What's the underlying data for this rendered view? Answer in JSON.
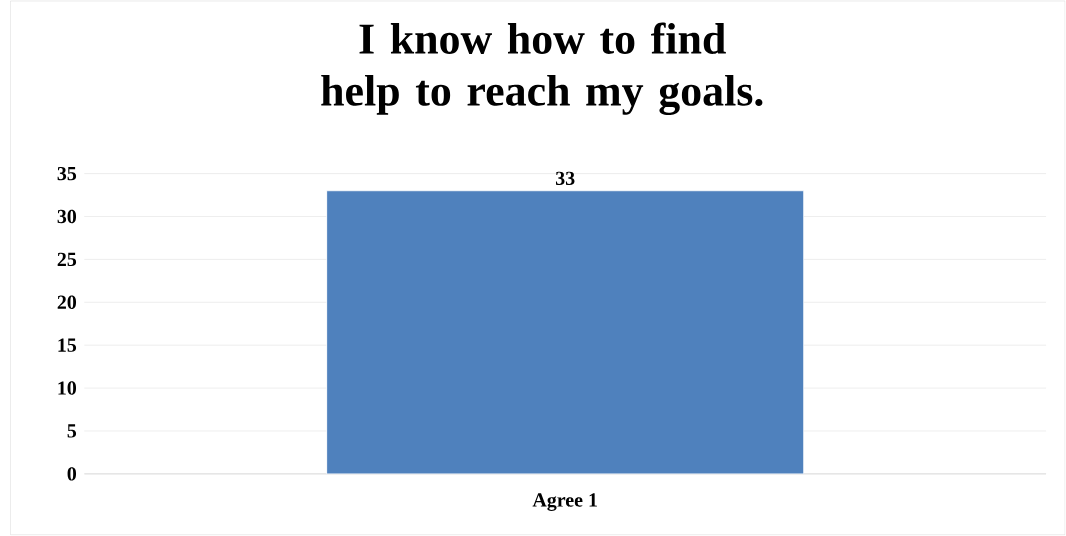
{
  "chart_data": {
    "type": "bar",
    "title": "I know how to find help to reach my goals.",
    "categories": [
      "Agree  1"
    ],
    "values": [
      33
    ],
    "color": "#4f81bd",
    "ylim": [
      0,
      35
    ],
    "yticks": [
      0,
      5,
      10,
      15,
      20,
      25,
      30,
      35
    ],
    "grid": "y",
    "data_labels": true
  }
}
